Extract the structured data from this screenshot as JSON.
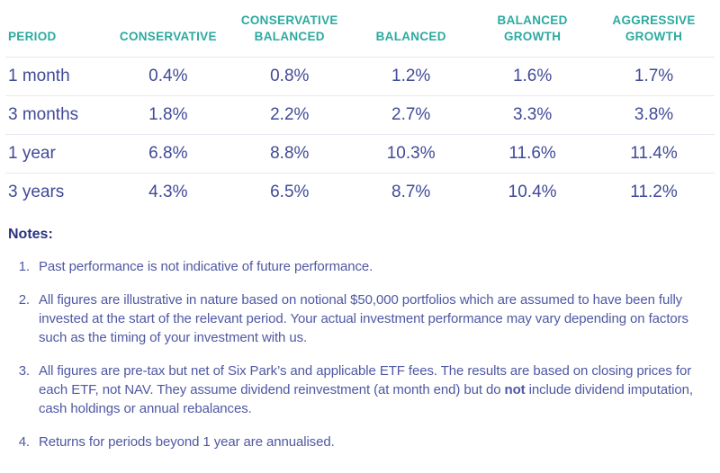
{
  "colors": {
    "header_teal": "#2CAAA0",
    "value_indigo": "#404A97",
    "notes_indigo": "#4F58A3",
    "notes_heading_indigo": "#2B3280",
    "row_divider": "#E8E8F1",
    "background": "#FFFFFF"
  },
  "table": {
    "columns": [
      "PERIOD",
      "CONSERVATIVE",
      "CONSERVATIVE BALANCED",
      "BALANCED",
      "BALANCED GROWTH",
      "AGGRESSIVE GROWTH"
    ],
    "rows": [
      {
        "period": "1 month",
        "values": [
          "0.4%",
          "0.8%",
          "1.2%",
          "1.6%",
          "1.7%"
        ]
      },
      {
        "period": "3 months",
        "values": [
          "1.8%",
          "2.2%",
          "2.7%",
          "3.3%",
          "3.8%"
        ]
      },
      {
        "period": "1 year",
        "values": [
          "6.8%",
          "8.8%",
          "10.3%",
          "11.6%",
          "11.4%"
        ]
      },
      {
        "period": "3 years",
        "values": [
          "4.3%",
          "6.5%",
          "8.7%",
          "10.4%",
          "11.2%"
        ]
      }
    ]
  },
  "notes": {
    "heading": "Notes:",
    "items": [
      {
        "number": "1.",
        "segments": [
          {
            "text": "Past performance is not indicative of future performance.",
            "bold": false
          }
        ]
      },
      {
        "number": "2.",
        "segments": [
          {
            "text": "All figures are illustrative in nature based on notional $50,000 portfolios which are assumed to have been fully invested at the start of the relevant period. Your actual investment performance may vary depending on factors such as the timing of your investment with us.",
            "bold": false
          }
        ]
      },
      {
        "number": "3.",
        "segments": [
          {
            "text": "All figures are pre-tax but net of Six Park’s and applicable ETF fees. The results are based on closing prices for each ETF, not NAV. They assume dividend reinvestment (at month end) but do ",
            "bold": false
          },
          {
            "text": "not",
            "bold": true
          },
          {
            "text": " include dividend imputation, cash holdings or annual rebalances.",
            "bold": false
          }
        ]
      },
      {
        "number": "4.",
        "segments": [
          {
            "text": "Returns for periods beyond 1 year are annualised.",
            "bold": false
          }
        ]
      }
    ]
  },
  "chart_data": {
    "type": "table",
    "title": "Portfolio performance by period",
    "columns": [
      "PERIOD",
      "CONSERVATIVE",
      "CONSERVATIVE BALANCED",
      "BALANCED",
      "BALANCED GROWTH",
      "AGGRESSIVE GROWTH"
    ],
    "unit": "%",
    "rows": [
      [
        "1 month",
        0.4,
        0.8,
        1.2,
        1.6,
        1.7
      ],
      [
        "3 months",
        1.8,
        2.2,
        2.7,
        3.3,
        3.8
      ],
      [
        "1 year",
        6.8,
        8.8,
        10.3,
        11.6,
        11.4
      ],
      [
        "3 years",
        4.3,
        6.5,
        8.7,
        10.4,
        11.2
      ]
    ]
  }
}
